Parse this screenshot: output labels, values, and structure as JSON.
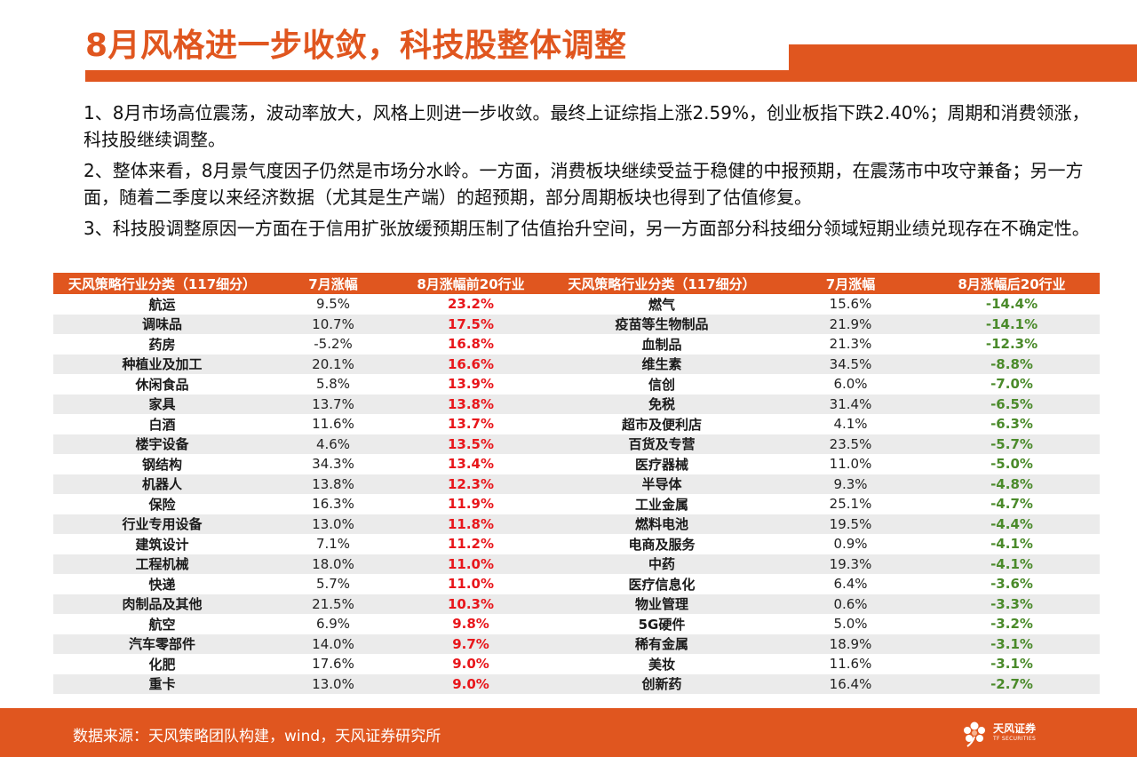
{
  "title": "8月风格进一步收敛，科技股整体调整",
  "paragraphs": [
    "1、8月市场高位震荡，波动率放大，风格上则进一步收敛。最终上证综指上涨2.59%，创业板指下跌2.40%；周期和消费领涨，科技股继续调整。",
    "2、整体来看，8月景气度因子仍然是市场分水岭。一方面，消费板块继续受益于稳健的中报预期，在震荡市中攻守兼备；另一方面，随着二季度以来经济数据（尤其是生产端）的超预期，部分周期板块也得到了估值修复。",
    "3、科技股调整原因一方面在于信用扩张放缓预期压制了估值抬升空间，另一方面部分科技细分领域短期业绩兑现存在不确定性。"
  ],
  "table": {
    "headers": [
      "天风策略行业分类（117细分）",
      "7月涨幅",
      "8月涨幅前20行业",
      "天风策略行业分类（117细分）",
      "7月涨幅",
      "8月涨幅后20行业"
    ],
    "rows": [
      [
        "航运",
        "9.5%",
        "23.2%",
        "燃气",
        "15.6%",
        "-14.4%"
      ],
      [
        "调味品",
        "10.7%",
        "17.5%",
        "疫苗等生物制品",
        "21.9%",
        "-14.1%"
      ],
      [
        "药房",
        "-5.2%",
        "16.8%",
        "血制品",
        "21.3%",
        "-12.3%"
      ],
      [
        "种植业及加工",
        "20.1%",
        "16.6%",
        "维生素",
        "34.5%",
        "-8.8%"
      ],
      [
        "休闲食品",
        "5.8%",
        "13.9%",
        "信创",
        "6.0%",
        "-7.0%"
      ],
      [
        "家具",
        "13.7%",
        "13.8%",
        "免税",
        "31.4%",
        "-6.5%"
      ],
      [
        "白酒",
        "11.6%",
        "13.7%",
        "超市及便利店",
        "4.1%",
        "-6.3%"
      ],
      [
        "楼宇设备",
        "4.6%",
        "13.5%",
        "百货及专营",
        "23.5%",
        "-5.7%"
      ],
      [
        "钢结构",
        "34.3%",
        "13.4%",
        "医疗器械",
        "11.0%",
        "-5.0%"
      ],
      [
        "机器人",
        "13.8%",
        "12.3%",
        "半导体",
        "9.3%",
        "-4.8%"
      ],
      [
        "保险",
        "16.3%",
        "11.9%",
        "工业金属",
        "25.1%",
        "-4.7%"
      ],
      [
        "行业专用设备",
        "13.0%",
        "11.8%",
        "燃料电池",
        "19.5%",
        "-4.4%"
      ],
      [
        "建筑设计",
        "7.1%",
        "11.2%",
        "电商及服务",
        "0.9%",
        "-4.1%"
      ],
      [
        "工程机械",
        "18.0%",
        "11.0%",
        "中药",
        "19.3%",
        "-4.1%"
      ],
      [
        "快递",
        "5.7%",
        "11.0%",
        "医疗信息化",
        "6.4%",
        "-3.6%"
      ],
      [
        "肉制品及其他",
        "21.5%",
        "10.3%",
        "物业管理",
        "0.6%",
        "-3.3%"
      ],
      [
        "航空",
        "6.9%",
        "9.8%",
        "5G硬件",
        "5.0%",
        "-3.2%"
      ],
      [
        "汽车零部件",
        "14.0%",
        "9.7%",
        "稀有金属",
        "18.9%",
        "-3.1%"
      ],
      [
        "化肥",
        "17.6%",
        "9.0%",
        "美妆",
        "11.6%",
        "-3.1%"
      ],
      [
        "重卡",
        "13.0%",
        "9.0%",
        "创新药",
        "16.4%",
        "-2.7%"
      ]
    ]
  },
  "footer": {
    "source": "数据来源：天风策略团队构建，wind，天风证券研究所",
    "logo_name": "天风证券",
    "logo_sub": "TF SECURITIES",
    "logo_icon": "flower-logo-icon"
  },
  "colors": {
    "brand": "#e0561f",
    "positive": "#e8161b",
    "negative": "#4a8a2a",
    "alt_row": "#ebebeb"
  }
}
